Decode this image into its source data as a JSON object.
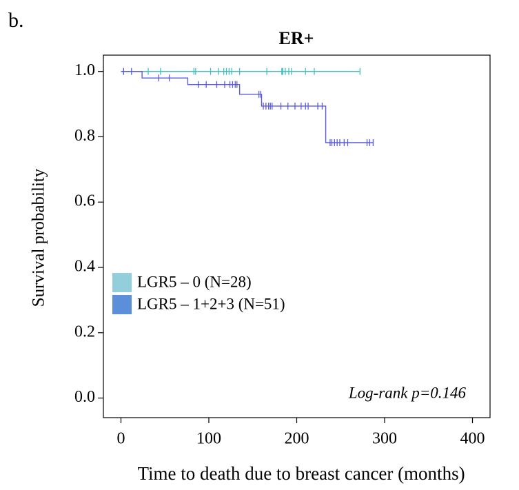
{
  "panel_label": "b.",
  "chart_data": {
    "type": "kaplan-meier",
    "title": "ER+",
    "xlabel": "Time to death due to breast cancer (months)",
    "ylabel": "Survival probability",
    "annotation": "Log-rank p=0.146",
    "xlim": [
      -20,
      420
    ],
    "ylim": [
      -0.06,
      1.05
    ],
    "xticks": [
      0,
      100,
      200,
      300,
      400
    ],
    "yticks": [
      {
        "value": 0,
        "label": "0.0"
      },
      {
        "value": 0.2,
        "label": "0.2"
      },
      {
        "value": 0.4,
        "label": "0.4"
      },
      {
        "value": 0.6,
        "label": "0.6"
      },
      {
        "value": 0.8,
        "label": "0.8"
      },
      {
        "value": 1,
        "label": "1.0"
      }
    ],
    "legend": "lower left",
    "series": [
      {
        "name": "LGR5 – 0 (N=28)",
        "color": "#3fbfbf",
        "legend_color": "#92cfdb",
        "x": [
          0
        ],
        "values": [
          1.0
        ],
        "censored": [
          3,
          31,
          45,
          83,
          85,
          102,
          111,
          117,
          120,
          123,
          126,
          135,
          166,
          183,
          184,
          187,
          191,
          194,
          210,
          220,
          272
        ]
      },
      {
        "name": "LGR5 – 1+2+3 (N=51)",
        "color": "#5a5ae0",
        "legend_color": "#5b8fd9",
        "x": [
          0,
          24,
          76,
          135,
          160,
          233
        ],
        "values": [
          1.0,
          0.98,
          0.96,
          0.93,
          0.894,
          0.782
        ],
        "censored": [
          3,
          12,
          43,
          55,
          88,
          97,
          109,
          118,
          124,
          127,
          130,
          132,
          157,
          159,
          162,
          165,
          168,
          170,
          172,
          182,
          190,
          198,
          205,
          210,
          213,
          224,
          229,
          238,
          240,
          243,
          246,
          249,
          254,
          258,
          280,
          283,
          287
        ]
      }
    ]
  }
}
